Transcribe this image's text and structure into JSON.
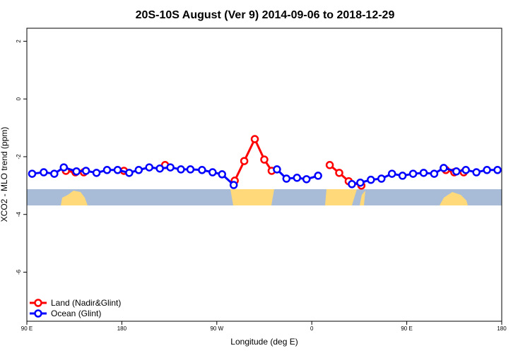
{
  "chart_data": {
    "type": "line",
    "title": "20S-10S August (Ver 9)   2014-09-06 to 2018-12-29",
    "x_label": "Longitude (deg E)",
    "y_label": "XCO2 - MLO trend (ppm)",
    "xlim": [
      90,
      540
    ],
    "xticks": [
      {
        "value": 90,
        "label": "90 E"
      },
      {
        "value": 180,
        "label": "180"
      },
      {
        "value": 270,
        "label": "90 W"
      },
      {
        "value": 360,
        "label": "0"
      },
      {
        "value": 450,
        "label": "90 E"
      },
      {
        "value": 540,
        "label": "180"
      }
    ],
    "ylim": [
      -7.7,
      2.45
    ],
    "yticks": [
      2,
      0,
      -2,
      -4,
      -6
    ],
    "legend": "bottomleft",
    "series": [
      {
        "name": "Land (Nadir&Glint)",
        "color": "#ff0000",
        "x": [
          127,
          136,
          144,
          null,
          182,
          null,
          221,
          null,
          287,
          296,
          306,
          315,
          322,
          null,
          377,
          386,
          395,
          407,
          null,
          487,
          495,
          504
        ],
        "values": [
          -2.49,
          -2.54,
          -2.54,
          null,
          -2.49,
          null,
          -2.29,
          null,
          -2.83,
          -2.15,
          -1.39,
          -2.1,
          -2.49,
          null,
          -2.29,
          -2.56,
          -2.85,
          -3.0,
          null,
          -2.46,
          -2.54,
          -2.54
        ]
      },
      {
        "name": "Ocean (Glint)",
        "color": "#0000ff",
        "x": [
          95,
          106,
          116,
          125,
          137,
          146,
          156,
          166,
          176,
          187,
          196,
          206,
          216,
          226,
          236,
          245,
          256,
          266,
          275,
          286,
          null,
          327,
          336,
          346,
          355,
          366,
          null,
          398,
          406,
          416,
          426,
          436,
          446,
          456,
          466,
          476,
          485,
          497,
          506,
          516,
          526,
          536
        ],
        "values": [
          -2.59,
          -2.54,
          -2.59,
          -2.37,
          -2.51,
          -2.49,
          -2.56,
          -2.46,
          -2.46,
          -2.56,
          -2.46,
          -2.37,
          -2.41,
          -2.37,
          -2.44,
          -2.44,
          -2.46,
          -2.54,
          -2.61,
          -2.98,
          null,
          -2.44,
          -2.76,
          -2.73,
          -2.78,
          -2.66,
          null,
          -2.95,
          -2.9,
          -2.8,
          -2.76,
          -2.59,
          -2.66,
          -2.59,
          -2.56,
          -2.59,
          -2.39,
          -2.51,
          -2.46,
          -2.54,
          -2.46,
          -2.46
        ]
      }
    ]
  }
}
